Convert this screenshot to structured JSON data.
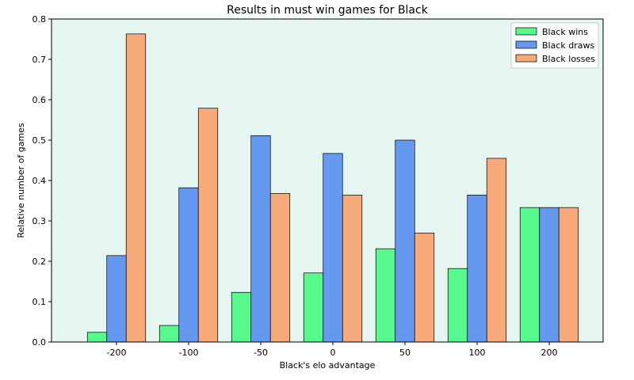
{
  "chart_data": {
    "type": "bar",
    "title": "Results in must win games for Black",
    "xlabel": "Black's elo advantage",
    "ylabel": "Relative number of games",
    "categories": [
      "-200",
      "-100",
      "-50",
      "0",
      "50",
      "100",
      "200"
    ],
    "series": [
      {
        "name": "Black wins",
        "color": "#57f98c",
        "values": [
          0.024,
          0.041,
          0.123,
          0.171,
          0.231,
          0.182,
          0.333
        ]
      },
      {
        "name": "Black draws",
        "color": "#6599ef",
        "values": [
          0.214,
          0.382,
          0.511,
          0.467,
          0.5,
          0.364,
          0.333
        ]
      },
      {
        "name": "Black losses",
        "color": "#f6aa79",
        "values": [
          0.763,
          0.579,
          0.368,
          0.364,
          0.27,
          0.455,
          0.333
        ]
      }
    ],
    "ylim": [
      0,
      0.8
    ],
    "yticks": [
      "0.0",
      "0.1",
      "0.2",
      "0.3",
      "0.4",
      "0.5",
      "0.6",
      "0.7",
      "0.8"
    ],
    "plot_background": "#e5f5ef",
    "grid": false,
    "legend_position": "top-right"
  }
}
